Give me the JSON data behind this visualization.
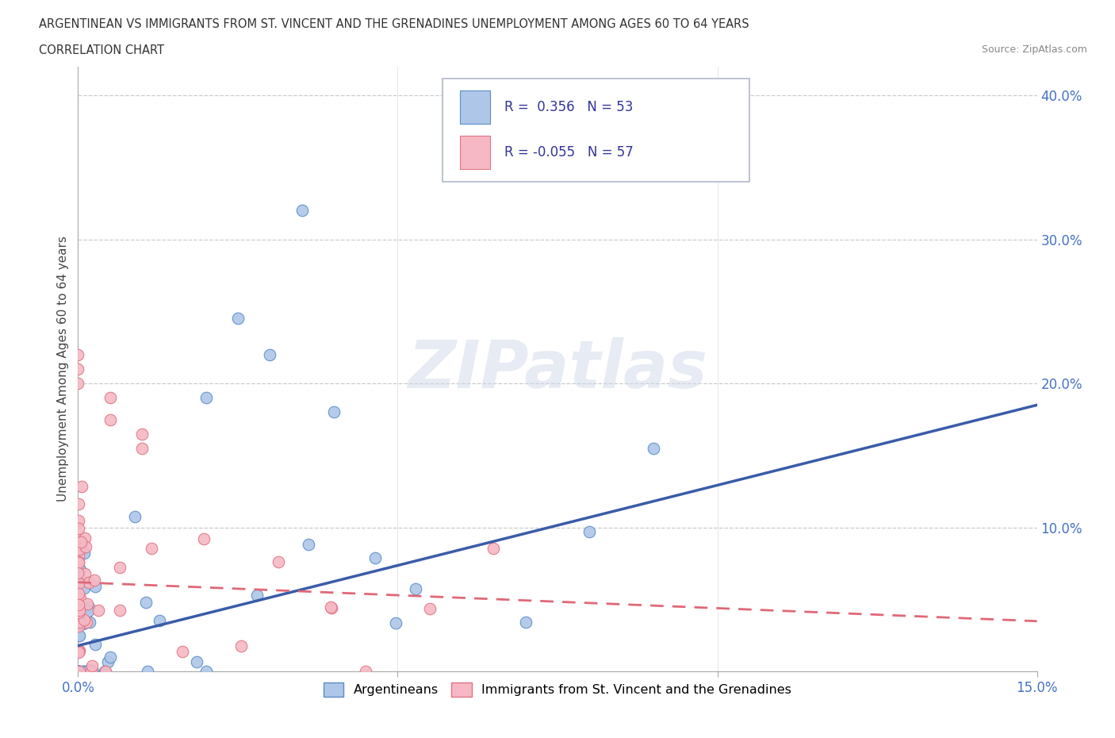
{
  "title_line1": "ARGENTINEAN VS IMMIGRANTS FROM ST. VINCENT AND THE GRENADINES UNEMPLOYMENT AMONG AGES 60 TO 64 YEARS",
  "title_line2": "CORRELATION CHART",
  "source": "Source: ZipAtlas.com",
  "ylabel": "Unemployment Among Ages 60 to 64 years",
  "xlim": [
    0.0,
    0.15
  ],
  "ylim": [
    0.0,
    0.42
  ],
  "blue_R": 0.356,
  "blue_N": 53,
  "pink_R": -0.055,
  "pink_N": 57,
  "blue_color": "#aec6e8",
  "pink_color": "#f5b8c4",
  "blue_edge_color": "#5b8dc8",
  "pink_edge_color": "#e07585",
  "blue_line_color": "#3a5ca8",
  "pink_line_color": "#e06878",
  "watermark": "ZIPatlas",
  "blue_line_x0": 0.0,
  "blue_line_y0": 0.018,
  "blue_line_x1": 0.15,
  "blue_line_y1": 0.185,
  "pink_line_x0": 0.0,
  "pink_line_y0": 0.062,
  "pink_line_x1": 0.15,
  "pink_line_y1": 0.035,
  "legend_blue_text": "R =  0.356   N = 53",
  "legend_pink_text": "R = -0.055   N = 57",
  "bottom_legend_blue": "Argentineans",
  "bottom_legend_pink": "Immigrants from St. Vincent and the Grenadines"
}
